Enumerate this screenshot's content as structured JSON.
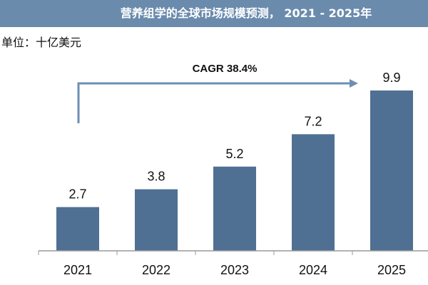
{
  "header": {
    "title": "营养组学的全球市场规模预测， 2021 - 2025年"
  },
  "unit_label": "单位：十亿美元",
  "colors": {
    "header": "#6b8bad",
    "bar": "#4f7093",
    "arrow": "#6d8fb3",
    "axis": "#999999"
  },
  "chart_data": {
    "type": "bar",
    "title": "营养组学的全球市场规模预测， 2021 - 2025年",
    "categories": [
      "2021",
      "2022",
      "2023",
      "2024",
      "2025"
    ],
    "values": [
      2.7,
      3.8,
      5.2,
      7.2,
      9.9
    ],
    "value_labels": [
      "2.7",
      "3.8",
      "5.2",
      "7.2",
      "9.9"
    ],
    "ylabel": "单位：十亿美元",
    "ylim": [
      0,
      9.9
    ],
    "grid": false,
    "annotation": "CAGR 38.4%"
  }
}
